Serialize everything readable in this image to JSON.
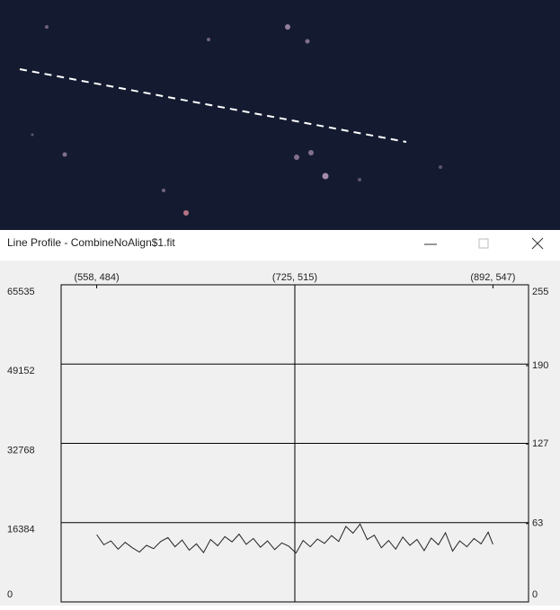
{
  "window": {
    "title": "Line Profile - CombineNoAlign$1.fit"
  },
  "chart_data": {
    "type": "line",
    "x": [
      558,
      564,
      570,
      576,
      582,
      588,
      594,
      600,
      606,
      612,
      618,
      624,
      630,
      636,
      642,
      648,
      654,
      660,
      666,
      672,
      678,
      684,
      690,
      696,
      702,
      708,
      714,
      720,
      726,
      732,
      738,
      744,
      750,
      756,
      762,
      768,
      774,
      780,
      786,
      792,
      798,
      804,
      810,
      816,
      822,
      828,
      834,
      840,
      846,
      852,
      858,
      864,
      870,
      876,
      882,
      888,
      892
    ],
    "series": [
      {
        "color": "#222222",
        "values": [
          13900,
          11800,
          12600,
          10900,
          12300,
          11200,
          10300,
          11700,
          11000,
          12500,
          13300,
          11400,
          12800,
          10700,
          12000,
          10200,
          12900,
          11600,
          13500,
          12400,
          14000,
          11900,
          13100,
          11300,
          12600,
          10800,
          12200,
          11500,
          10100,
          12700,
          11400,
          13000,
          12100,
          13700,
          12500,
          15600,
          14200,
          16100,
          12900,
          13800,
          11200,
          12700,
          10900,
          13400,
          11700,
          12900,
          10600,
          13200,
          11800,
          14300,
          10500,
          12600,
          11400,
          13100,
          12000,
          14400,
          11900
        ]
      }
    ],
    "xlim": [
      528,
      922
    ],
    "xticks": [
      {
        "value": 558,
        "label": "(558, 484)"
      },
      {
        "value": 725,
        "label": "(725, 515)"
      },
      {
        "value": 892,
        "label": "(892, 547)"
      }
    ],
    "ylim": [
      0,
      65535
    ],
    "yticks": [
      0,
      16384,
      32768,
      49152,
      65535
    ],
    "y2lim": [
      0,
      255
    ],
    "y2ticks": [
      0,
      63,
      127,
      190,
      255
    ],
    "grid": true
  }
}
